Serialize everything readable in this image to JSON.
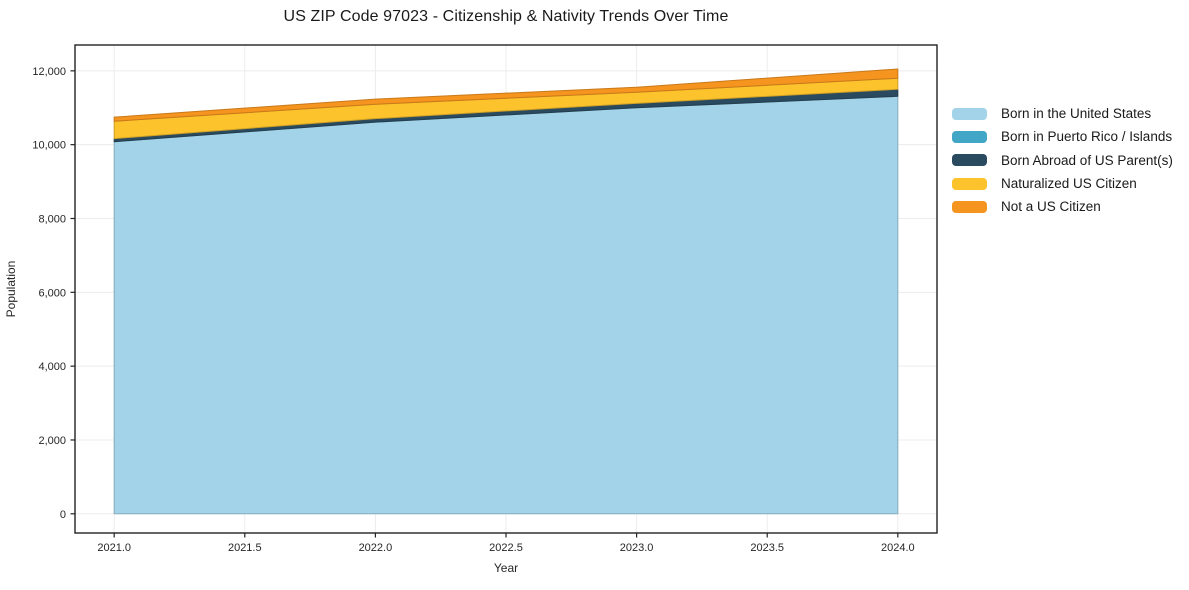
{
  "chart_data": {
    "type": "area",
    "stacked": true,
    "title": "US ZIP Code 97023 - Citizenship & Nativity Trends Over Time",
    "xlabel": "Year",
    "ylabel": "Population",
    "x": [
      2021,
      2022,
      2023,
      2024
    ],
    "series": [
      {
        "name": "Born in the United States",
        "color": "#a3d3e8",
        "values": [
          10080,
          10610,
          11000,
          11310
        ]
      },
      {
        "name": "Born in Puerto Rico / Islands",
        "color": "#42a6c6",
        "values": [
          0,
          0,
          0,
          0
        ]
      },
      {
        "name": "Born Abroad of US Parent(s)",
        "color": "#2a4a5f",
        "values": [
          85,
          95,
          120,
          190
        ]
      },
      {
        "name": "Naturalized US Citizen",
        "color": "#fcc32d",
        "values": [
          470,
          390,
          300,
          300
        ]
      },
      {
        "name": "Not a US Citizen",
        "color": "#f5941f",
        "values": [
          110,
          140,
          135,
          250
        ]
      }
    ],
    "stack_totals": [
      10745,
      11235,
      11555,
      12050
    ],
    "x_ticks": [
      2021.0,
      2021.5,
      2022.0,
      2022.5,
      2023.0,
      2023.5,
      2024.0
    ],
    "x_tick_labels": [
      "2021.0",
      "2021.5",
      "2022.0",
      "2022.5",
      "2023.0",
      "2023.5",
      "2024.0"
    ],
    "y_ticks": [
      0,
      2000,
      4000,
      6000,
      8000,
      10000,
      12000
    ],
    "y_tick_labels": [
      "0",
      "2,000",
      "4,000",
      "6,000",
      "8,000",
      "10,000",
      "12,000"
    ],
    "xlim": [
      2020.85,
      2024.15
    ],
    "ylim": [
      -520,
      12700
    ],
    "grid": true,
    "legend_position": "right",
    "colors": {
      "grid": "#ececec",
      "spine": "#222222",
      "tick": "#222222",
      "tick_label": "#262626",
      "title_text": "#1a1a1a",
      "background": "#ffffff"
    }
  }
}
